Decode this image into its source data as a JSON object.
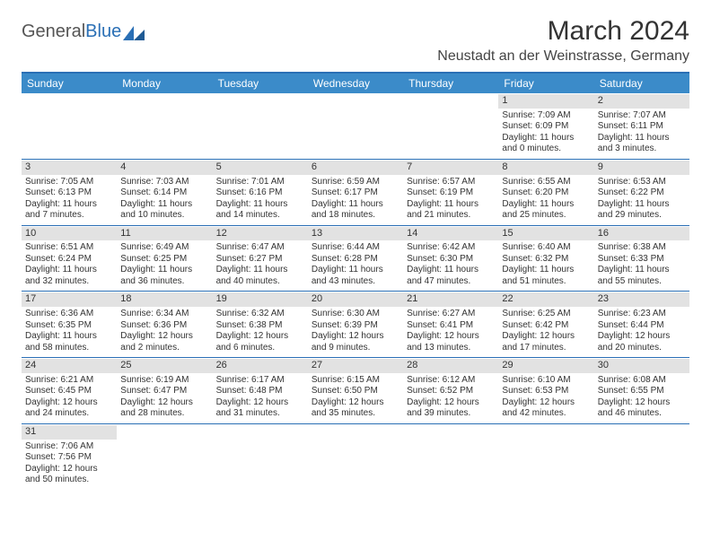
{
  "logo": {
    "text1": "General",
    "text2": "Blue"
  },
  "title": "March 2024",
  "location": "Neustadt an der Weinstrasse, Germany",
  "colors": {
    "header_bg": "#3b8bc9",
    "border": "#2a6fb5",
    "daynum_bg": "#e2e2e2",
    "text": "#333333"
  },
  "day_names": [
    "Sunday",
    "Monday",
    "Tuesday",
    "Wednesday",
    "Thursday",
    "Friday",
    "Saturday"
  ],
  "weeks": [
    [
      {
        "n": "",
        "sr": "",
        "ss": "",
        "dl": ""
      },
      {
        "n": "",
        "sr": "",
        "ss": "",
        "dl": ""
      },
      {
        "n": "",
        "sr": "",
        "ss": "",
        "dl": ""
      },
      {
        "n": "",
        "sr": "",
        "ss": "",
        "dl": ""
      },
      {
        "n": "",
        "sr": "",
        "ss": "",
        "dl": ""
      },
      {
        "n": "1",
        "sr": "Sunrise: 7:09 AM",
        "ss": "Sunset: 6:09 PM",
        "dl": "Daylight: 11 hours and 0 minutes."
      },
      {
        "n": "2",
        "sr": "Sunrise: 7:07 AM",
        "ss": "Sunset: 6:11 PM",
        "dl": "Daylight: 11 hours and 3 minutes."
      }
    ],
    [
      {
        "n": "3",
        "sr": "Sunrise: 7:05 AM",
        "ss": "Sunset: 6:13 PM",
        "dl": "Daylight: 11 hours and 7 minutes."
      },
      {
        "n": "4",
        "sr": "Sunrise: 7:03 AM",
        "ss": "Sunset: 6:14 PM",
        "dl": "Daylight: 11 hours and 10 minutes."
      },
      {
        "n": "5",
        "sr": "Sunrise: 7:01 AM",
        "ss": "Sunset: 6:16 PM",
        "dl": "Daylight: 11 hours and 14 minutes."
      },
      {
        "n": "6",
        "sr": "Sunrise: 6:59 AM",
        "ss": "Sunset: 6:17 PM",
        "dl": "Daylight: 11 hours and 18 minutes."
      },
      {
        "n": "7",
        "sr": "Sunrise: 6:57 AM",
        "ss": "Sunset: 6:19 PM",
        "dl": "Daylight: 11 hours and 21 minutes."
      },
      {
        "n": "8",
        "sr": "Sunrise: 6:55 AM",
        "ss": "Sunset: 6:20 PM",
        "dl": "Daylight: 11 hours and 25 minutes."
      },
      {
        "n": "9",
        "sr": "Sunrise: 6:53 AM",
        "ss": "Sunset: 6:22 PM",
        "dl": "Daylight: 11 hours and 29 minutes."
      }
    ],
    [
      {
        "n": "10",
        "sr": "Sunrise: 6:51 AM",
        "ss": "Sunset: 6:24 PM",
        "dl": "Daylight: 11 hours and 32 minutes."
      },
      {
        "n": "11",
        "sr": "Sunrise: 6:49 AM",
        "ss": "Sunset: 6:25 PM",
        "dl": "Daylight: 11 hours and 36 minutes."
      },
      {
        "n": "12",
        "sr": "Sunrise: 6:47 AM",
        "ss": "Sunset: 6:27 PM",
        "dl": "Daylight: 11 hours and 40 minutes."
      },
      {
        "n": "13",
        "sr": "Sunrise: 6:44 AM",
        "ss": "Sunset: 6:28 PM",
        "dl": "Daylight: 11 hours and 43 minutes."
      },
      {
        "n": "14",
        "sr": "Sunrise: 6:42 AM",
        "ss": "Sunset: 6:30 PM",
        "dl": "Daylight: 11 hours and 47 minutes."
      },
      {
        "n": "15",
        "sr": "Sunrise: 6:40 AM",
        "ss": "Sunset: 6:32 PM",
        "dl": "Daylight: 11 hours and 51 minutes."
      },
      {
        "n": "16",
        "sr": "Sunrise: 6:38 AM",
        "ss": "Sunset: 6:33 PM",
        "dl": "Daylight: 11 hours and 55 minutes."
      }
    ],
    [
      {
        "n": "17",
        "sr": "Sunrise: 6:36 AM",
        "ss": "Sunset: 6:35 PM",
        "dl": "Daylight: 11 hours and 58 minutes."
      },
      {
        "n": "18",
        "sr": "Sunrise: 6:34 AM",
        "ss": "Sunset: 6:36 PM",
        "dl": "Daylight: 12 hours and 2 minutes."
      },
      {
        "n": "19",
        "sr": "Sunrise: 6:32 AM",
        "ss": "Sunset: 6:38 PM",
        "dl": "Daylight: 12 hours and 6 minutes."
      },
      {
        "n": "20",
        "sr": "Sunrise: 6:30 AM",
        "ss": "Sunset: 6:39 PM",
        "dl": "Daylight: 12 hours and 9 minutes."
      },
      {
        "n": "21",
        "sr": "Sunrise: 6:27 AM",
        "ss": "Sunset: 6:41 PM",
        "dl": "Daylight: 12 hours and 13 minutes."
      },
      {
        "n": "22",
        "sr": "Sunrise: 6:25 AM",
        "ss": "Sunset: 6:42 PM",
        "dl": "Daylight: 12 hours and 17 minutes."
      },
      {
        "n": "23",
        "sr": "Sunrise: 6:23 AM",
        "ss": "Sunset: 6:44 PM",
        "dl": "Daylight: 12 hours and 20 minutes."
      }
    ],
    [
      {
        "n": "24",
        "sr": "Sunrise: 6:21 AM",
        "ss": "Sunset: 6:45 PM",
        "dl": "Daylight: 12 hours and 24 minutes."
      },
      {
        "n": "25",
        "sr": "Sunrise: 6:19 AM",
        "ss": "Sunset: 6:47 PM",
        "dl": "Daylight: 12 hours and 28 minutes."
      },
      {
        "n": "26",
        "sr": "Sunrise: 6:17 AM",
        "ss": "Sunset: 6:48 PM",
        "dl": "Daylight: 12 hours and 31 minutes."
      },
      {
        "n": "27",
        "sr": "Sunrise: 6:15 AM",
        "ss": "Sunset: 6:50 PM",
        "dl": "Daylight: 12 hours and 35 minutes."
      },
      {
        "n": "28",
        "sr": "Sunrise: 6:12 AM",
        "ss": "Sunset: 6:52 PM",
        "dl": "Daylight: 12 hours and 39 minutes."
      },
      {
        "n": "29",
        "sr": "Sunrise: 6:10 AM",
        "ss": "Sunset: 6:53 PM",
        "dl": "Daylight: 12 hours and 42 minutes."
      },
      {
        "n": "30",
        "sr": "Sunrise: 6:08 AM",
        "ss": "Sunset: 6:55 PM",
        "dl": "Daylight: 12 hours and 46 minutes."
      }
    ],
    [
      {
        "n": "31",
        "sr": "Sunrise: 7:06 AM",
        "ss": "Sunset: 7:56 PM",
        "dl": "Daylight: 12 hours and 50 minutes."
      },
      {
        "n": "",
        "sr": "",
        "ss": "",
        "dl": ""
      },
      {
        "n": "",
        "sr": "",
        "ss": "",
        "dl": ""
      },
      {
        "n": "",
        "sr": "",
        "ss": "",
        "dl": ""
      },
      {
        "n": "",
        "sr": "",
        "ss": "",
        "dl": ""
      },
      {
        "n": "",
        "sr": "",
        "ss": "",
        "dl": ""
      },
      {
        "n": "",
        "sr": "",
        "ss": "",
        "dl": ""
      }
    ]
  ]
}
